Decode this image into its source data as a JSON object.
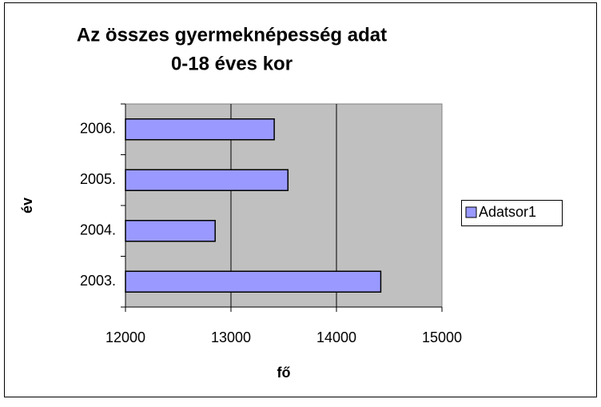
{
  "chart_data": {
    "type": "bar",
    "orientation": "horizontal",
    "title": [
      "Az összes gyermeknépesség adat",
      "0-18 éves kor"
    ],
    "categories": [
      "2003.",
      "2004.",
      "2005.",
      "2006."
    ],
    "series": [
      {
        "name": "Adatsor1",
        "color": "#9999ff",
        "values": [
          14420,
          12850,
          13540,
          13410
        ]
      }
    ],
    "xlim": [
      12000,
      15000
    ],
    "xticks": [
      12000,
      13000,
      14000,
      15000
    ],
    "xlabel": "fő",
    "ylabel": "év",
    "grid": true,
    "legend": "right"
  }
}
